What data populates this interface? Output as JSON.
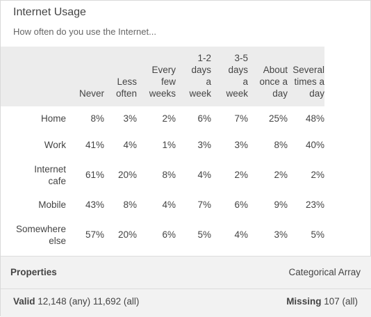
{
  "card": {
    "title": "Internet Usage",
    "subtitle": "How often do you use the Internet..."
  },
  "table": {
    "columns": [
      [
        "Never"
      ],
      [
        "Less",
        "often"
      ],
      [
        "Every",
        "few",
        "weeks"
      ],
      [
        "1-2",
        "days",
        "a",
        "week"
      ],
      [
        "3-5",
        "days",
        "a",
        "week"
      ],
      [
        "About",
        "once a",
        "day"
      ],
      [
        "Several",
        "times a",
        "day"
      ]
    ],
    "rows": [
      {
        "label": [
          "Home"
        ],
        "values": [
          "8%",
          "3%",
          "2%",
          "6%",
          "7%",
          "25%",
          "48%"
        ]
      },
      {
        "label": [
          "Work"
        ],
        "values": [
          "41%",
          "4%",
          "1%",
          "3%",
          "3%",
          "8%",
          "40%"
        ]
      },
      {
        "label": [
          "Internet",
          "cafe"
        ],
        "values": [
          "61%",
          "20%",
          "8%",
          "4%",
          "2%",
          "2%",
          "2%"
        ]
      },
      {
        "label": [
          "Mobile"
        ],
        "values": [
          "43%",
          "8%",
          "4%",
          "7%",
          "6%",
          "9%",
          "23%"
        ]
      },
      {
        "label": [
          "Somewhere",
          "else"
        ],
        "values": [
          "57%",
          "20%",
          "6%",
          "5%",
          "4%",
          "3%",
          "5%"
        ]
      }
    ]
  },
  "properties": {
    "label": "Properties",
    "value": "Categorical Array"
  },
  "footer": {
    "valid_label": "Valid",
    "valid_value": "12,148 (any) 11,692 (all)",
    "missing_label": "Missing",
    "missing_value": "107 (all)"
  },
  "colors": {
    "header_bg": "#ececec",
    "footer_bg": "#f2f2f2",
    "text": "#444444"
  }
}
